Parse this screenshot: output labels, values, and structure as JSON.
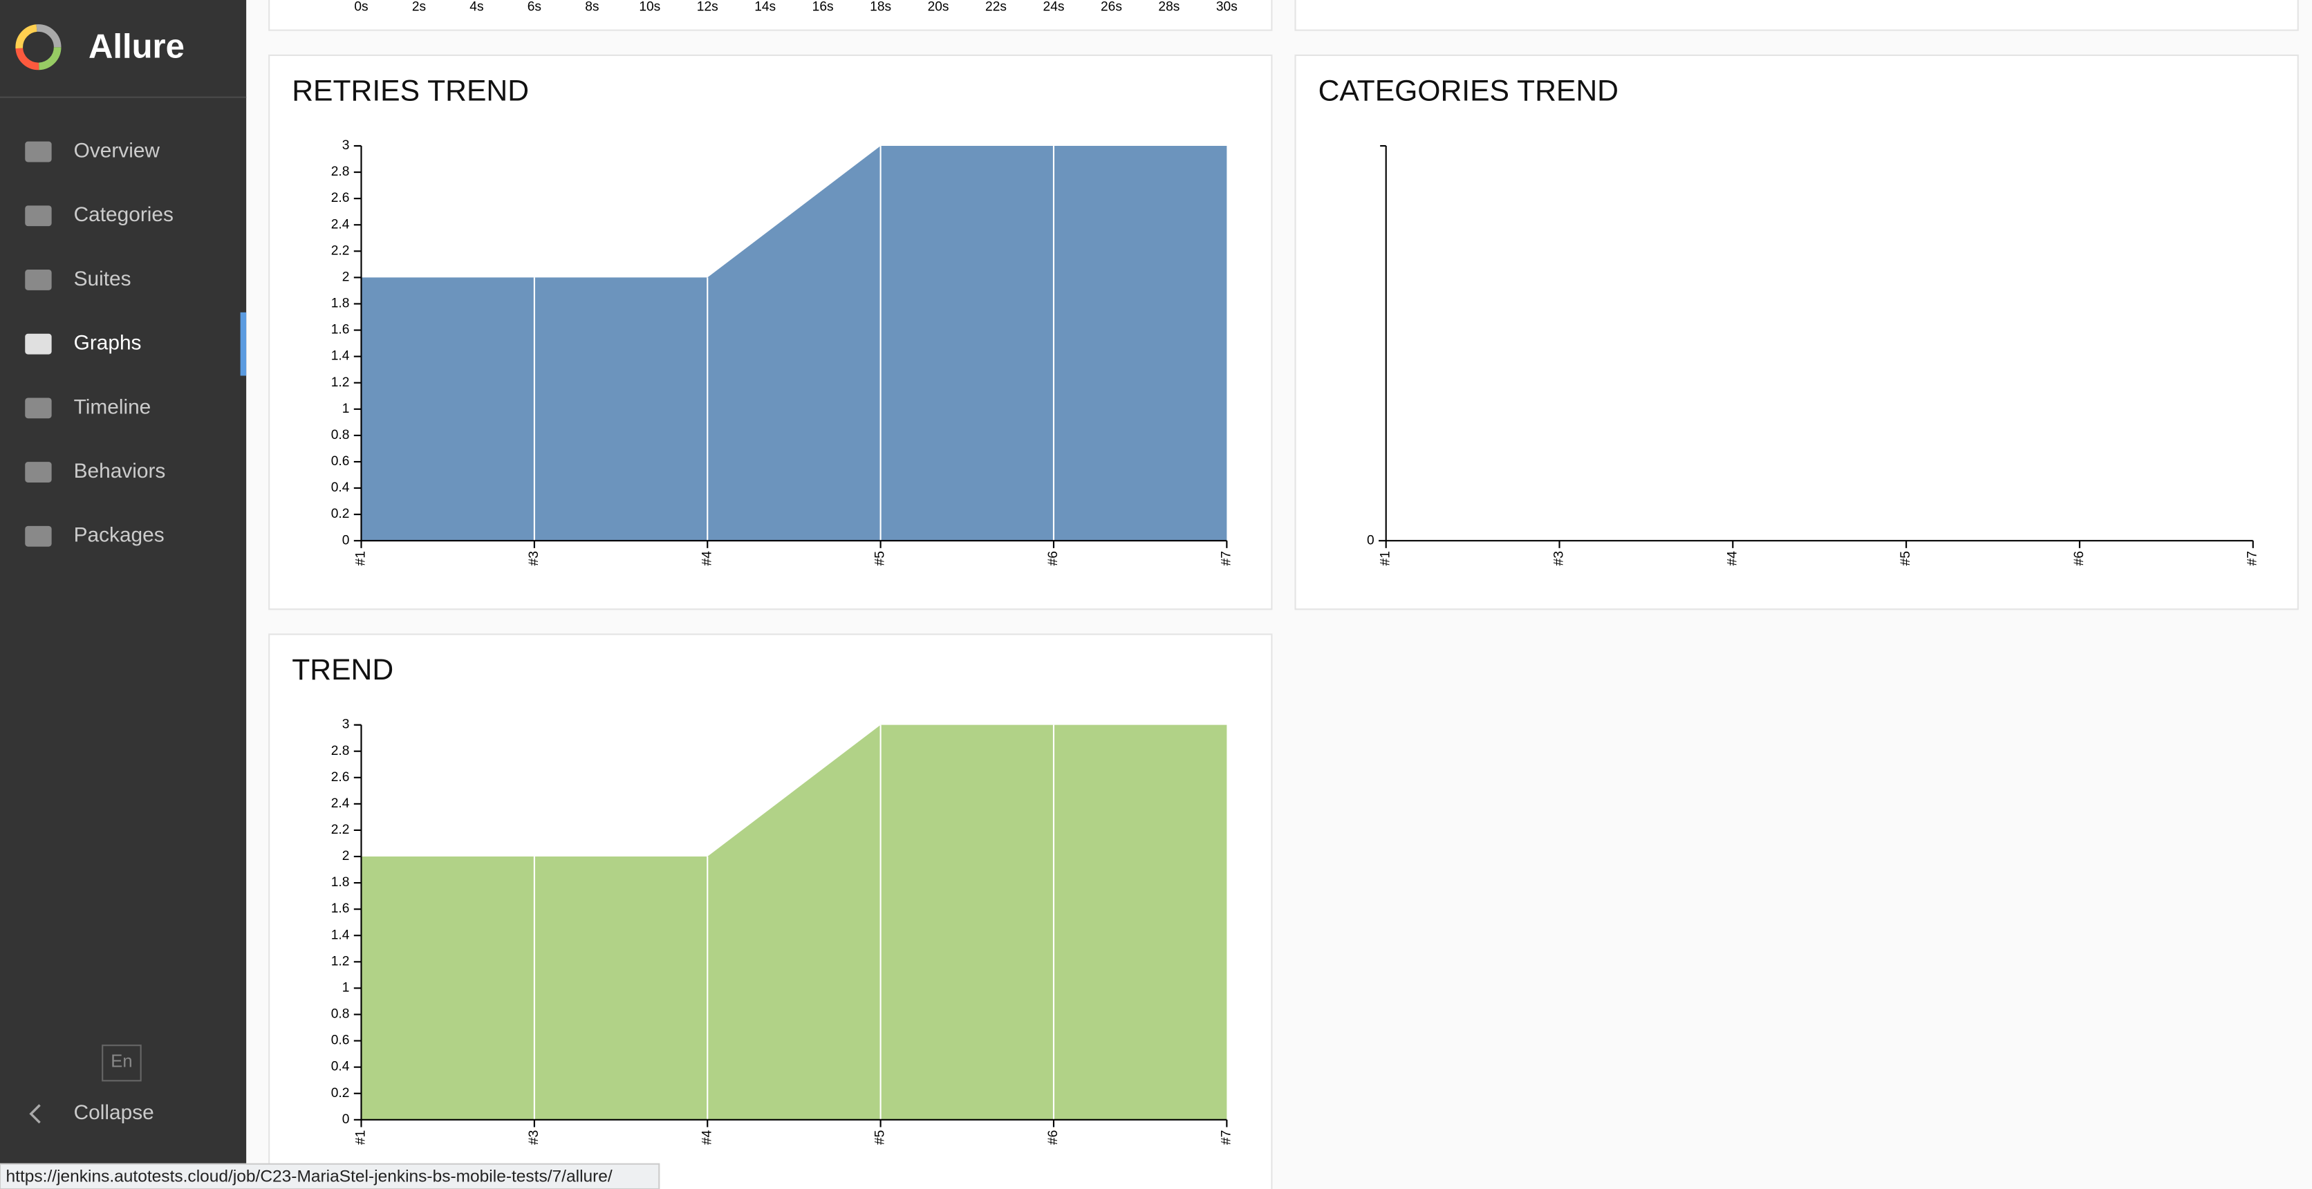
{
  "sidebar": {
    "brand": "Allure",
    "nav": [
      "Overview",
      "Categories",
      "Suites",
      "Graphs",
      "Timeline",
      "Behaviors",
      "Packages"
    ],
    "active": 3,
    "language": "En",
    "collapse": "Collapse"
  },
  "status_url": "https://jenkins.autotests.cloud/job/C23-MariaStel-jenkins-bs-mobile-tests/7/allure/",
  "chart_data": [
    {
      "type": "timeline",
      "xlim": [
        0,
        30
      ],
      "xticks": [
        {
          "value": 0,
          "label": "0s"
        },
        {
          "value": 2,
          "label": "2s"
        },
        {
          "value": 4,
          "label": "4s"
        },
        {
          "value": 6,
          "label": "6s"
        },
        {
          "value": 8,
          "label": "8s"
        },
        {
          "value": 10,
          "label": "10s"
        },
        {
          "value": 12,
          "label": "12s"
        },
        {
          "value": 14,
          "label": "14s"
        },
        {
          "value": 16,
          "label": "16s"
        },
        {
          "value": 18,
          "label": "18s"
        },
        {
          "value": 20,
          "label": "20s"
        },
        {
          "value": 22,
          "label": "22s"
        },
        {
          "value": 24,
          "label": "24s"
        },
        {
          "value": 26,
          "label": "26s"
        },
        {
          "value": 28,
          "label": "28s"
        },
        {
          "value": 30,
          "label": "30s"
        }
      ]
    },
    {
      "type": "area",
      "title": "RETRIES TREND",
      "categories": [
        "#1",
        "#3",
        "#4",
        "#5",
        "#6",
        "#7"
      ],
      "series": [
        {
          "color": "#6c94bd",
          "values": [
            2,
            2,
            2,
            3,
            3,
            3
          ]
        }
      ],
      "ylim": [
        0,
        3
      ],
      "yticks": [
        0,
        0.2,
        0.4,
        0.6,
        0.8,
        1,
        1.2,
        1.4,
        1.6,
        1.8,
        2,
        2.2,
        2.4,
        2.6,
        2.8,
        3
      ]
    },
    {
      "type": "area",
      "title": "CATEGORIES TREND",
      "categories": [
        "#1",
        "#3",
        "#4",
        "#5",
        "#6",
        "#7"
      ],
      "series": [],
      "yticks": [
        0
      ]
    },
    {
      "type": "area",
      "title": "TREND",
      "categories": [
        "#1",
        "#3",
        "#4",
        "#5",
        "#6",
        "#7"
      ],
      "series": [
        {
          "color": "#b1d287",
          "values": [
            2,
            2,
            2,
            3,
            3,
            3
          ]
        }
      ],
      "ylim": [
        0,
        3
      ],
      "yticks": [
        0,
        0.2,
        0.4,
        0.6,
        0.8,
        1,
        1.2,
        1.4,
        1.6,
        1.8,
        2,
        2.2,
        2.4,
        2.6,
        2.8,
        3
      ]
    }
  ]
}
